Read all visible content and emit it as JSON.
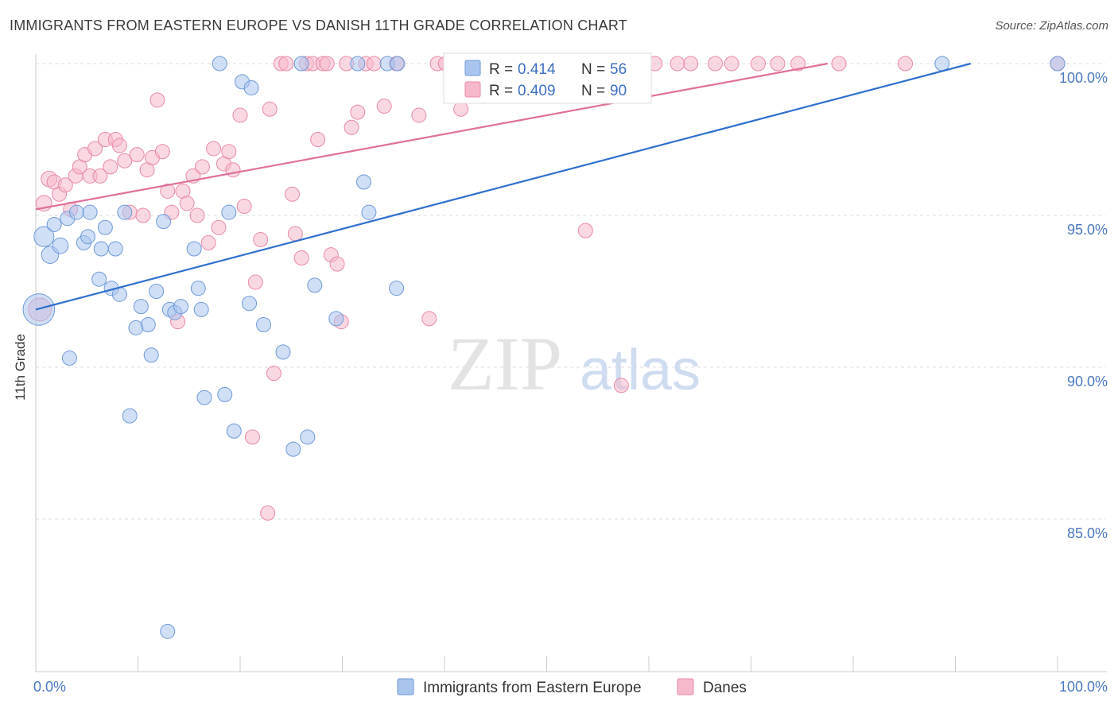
{
  "title": "IMMIGRANTS FROM EASTERN EUROPE VS DANISH 11TH GRADE CORRELATION CHART",
  "source": "Source: ZipAtlas.com",
  "watermark": {
    "zip": "ZIP",
    "atlas": "atlas"
  },
  "colors": {
    "blue_fill": "#a9c5ee",
    "blue_stroke": "#6f9ad8",
    "blue_line": "#2f6fce",
    "pink_fill": "#f6b8cb",
    "pink_stroke": "#e98aa8",
    "pink_line": "#e0709a",
    "grid": "#dddddd",
    "axis": "#cccccc",
    "tick_text": "#4a78c2"
  },
  "stats": {
    "blue": {
      "r_label": "R =",
      "r_value": "0.414",
      "n_label": "N =",
      "n_value": "56"
    },
    "pink": {
      "r_label": "R =",
      "r_value": "0.409",
      "n_label": "N =",
      "n_value": "90"
    }
  },
  "chart_data": {
    "type": "scatter",
    "title": "IMMIGRANTS FROM EASTERN EUROPE VS DANISH 11TH GRADE CORRELATION CHART",
    "xlabel": "",
    "ylabel": "11th Grade",
    "xlim": [
      0,
      100
    ],
    "ylim": [
      80.5,
      100.8
    ],
    "x_tick_labels": [
      {
        "value": 0,
        "label": "0.0%"
      },
      {
        "value": 100,
        "label": "100.0%"
      }
    ],
    "y_tick_labels": [
      {
        "value": 100,
        "label": "100.0%"
      },
      {
        "value": 95,
        "label": "95.0%"
      },
      {
        "value": 90,
        "label": "90.0%"
      },
      {
        "value": 85,
        "label": "85.0%"
      }
    ],
    "x_minor_ticks": [
      10,
      20,
      30,
      40,
      50,
      60,
      70,
      80,
      90,
      100
    ],
    "grid": true,
    "legend": "bottom-center",
    "series": [
      {
        "name": "Immigrants from Eastern Europe",
        "color": "#a9c5ee",
        "trend": {
          "x": [
            0,
            91.5
          ],
          "y": [
            91.9,
            100
          ]
        },
        "points": [
          [
            0.3,
            91.9,
            2.2
          ],
          [
            0.8,
            94.3,
            1.4
          ],
          [
            1.4,
            93.7,
            1.2
          ],
          [
            1.8,
            94.7,
            1.0
          ],
          [
            2.4,
            94.0,
            1.1
          ],
          [
            3.1,
            94.9,
            1.0
          ],
          [
            3.3,
            90.3,
            1.0
          ],
          [
            4.0,
            95.1,
            1.0
          ],
          [
            4.7,
            94.1,
            1.0
          ],
          [
            5.1,
            94.3,
            1.0
          ],
          [
            5.3,
            95.1,
            1.0
          ],
          [
            6.2,
            92.9,
            1.0
          ],
          [
            6.4,
            93.9,
            1.0
          ],
          [
            6.8,
            94.6,
            1.0
          ],
          [
            7.4,
            92.6,
            1.0
          ],
          [
            7.8,
            93.9,
            1.0
          ],
          [
            8.2,
            92.4,
            1.0
          ],
          [
            8.7,
            95.1,
            1.0
          ],
          [
            9.2,
            88.4,
            1.0
          ],
          [
            9.8,
            91.3,
            1.0
          ],
          [
            10.3,
            92.0,
            1.0
          ],
          [
            11.0,
            91.4,
            1.0
          ],
          [
            11.3,
            90.4,
            1.0
          ],
          [
            11.8,
            92.5,
            1.0
          ],
          [
            12.5,
            94.8,
            1.0
          ],
          [
            13.1,
            91.9,
            1.0
          ],
          [
            13.6,
            91.8,
            1.0
          ],
          [
            14.2,
            92.0,
            1.0
          ],
          [
            12.9,
            81.3,
            1.0
          ],
          [
            15.5,
            93.9,
            1.0
          ],
          [
            15.9,
            92.6,
            1.0
          ],
          [
            16.2,
            91.9,
            1.0
          ],
          [
            16.5,
            89.0,
            1.0
          ],
          [
            18.0,
            100.0,
            1.0
          ],
          [
            18.5,
            89.1,
            1.0
          ],
          [
            18.9,
            95.1,
            1.0
          ],
          [
            19.4,
            87.9,
            1.0
          ],
          [
            20.2,
            99.4,
            1.0
          ],
          [
            21.1,
            99.2,
            1.0
          ],
          [
            20.9,
            92.1,
            1.0
          ],
          [
            22.3,
            91.4,
            1.0
          ],
          [
            24.2,
            90.5,
            1.0
          ],
          [
            25.2,
            87.3,
            1.0
          ],
          [
            26.0,
            100.0,
            1.0
          ],
          [
            26.6,
            87.7,
            1.0
          ],
          [
            27.3,
            92.7,
            1.0
          ],
          [
            29.4,
            91.6,
            1.0
          ],
          [
            31.5,
            100.0,
            1.0
          ],
          [
            32.1,
            96.1,
            1.0
          ],
          [
            32.6,
            95.1,
            1.0
          ],
          [
            34.4,
            100.0,
            1.0
          ],
          [
            35.4,
            100.0,
            1.0
          ],
          [
            35.3,
            92.6,
            1.0
          ],
          [
            55.4,
            100.0,
            1.0
          ],
          [
            88.7,
            100.0,
            1.0
          ],
          [
            100.0,
            100.0,
            1.0
          ]
        ]
      },
      {
        "name": "Danes",
        "color": "#f6b8cb",
        "trend": {
          "x": [
            0,
            77.5
          ],
          "y": [
            95.2,
            100
          ]
        },
        "points": [
          [
            0.4,
            91.9,
            1.6
          ],
          [
            0.8,
            95.4,
            1.1
          ],
          [
            1.3,
            96.2,
            1.1
          ],
          [
            1.8,
            96.1,
            1.0
          ],
          [
            2.3,
            95.7,
            1.0
          ],
          [
            2.9,
            96.0,
            1.0
          ],
          [
            3.4,
            95.2,
            1.0
          ],
          [
            3.9,
            96.3,
            1.0
          ],
          [
            4.3,
            96.6,
            1.0
          ],
          [
            4.8,
            97.0,
            1.0
          ],
          [
            5.3,
            96.3,
            1.0
          ],
          [
            5.8,
            97.2,
            1.0
          ],
          [
            6.3,
            96.3,
            1.0
          ],
          [
            6.8,
            97.5,
            1.0
          ],
          [
            7.3,
            96.6,
            1.0
          ],
          [
            7.8,
            97.5,
            1.0
          ],
          [
            8.2,
            97.3,
            1.0
          ],
          [
            8.7,
            96.8,
            1.0
          ],
          [
            9.2,
            95.1,
            1.0
          ],
          [
            9.9,
            97.0,
            1.0
          ],
          [
            10.5,
            95.0,
            1.0
          ],
          [
            10.9,
            96.5,
            1.0
          ],
          [
            11.4,
            96.9,
            1.0
          ],
          [
            11.9,
            98.8,
            1.0
          ],
          [
            12.4,
            97.1,
            1.0
          ],
          [
            12.9,
            95.8,
            1.0
          ],
          [
            13.3,
            95.1,
            1.0
          ],
          [
            13.9,
            91.5,
            1.0
          ],
          [
            14.4,
            95.8,
            1.0
          ],
          [
            14.8,
            95.4,
            1.0
          ],
          [
            15.4,
            96.3,
            1.0
          ],
          [
            15.8,
            95.0,
            1.0
          ],
          [
            16.3,
            96.6,
            1.0
          ],
          [
            16.9,
            94.1,
            1.0
          ],
          [
            17.4,
            97.2,
            1.0
          ],
          [
            17.9,
            94.6,
            1.0
          ],
          [
            18.4,
            96.7,
            1.0
          ],
          [
            18.9,
            97.1,
            1.0
          ],
          [
            19.3,
            96.5,
            1.0
          ],
          [
            20.0,
            98.3,
            1.0
          ],
          [
            20.4,
            95.3,
            1.0
          ],
          [
            21.2,
            87.7,
            1.0
          ],
          [
            21.5,
            92.8,
            1.0
          ],
          [
            22.0,
            94.2,
            1.0
          ],
          [
            22.7,
            85.2,
            1.0
          ],
          [
            22.9,
            98.5,
            1.0
          ],
          [
            23.3,
            89.8,
            1.0
          ],
          [
            24.0,
            100.0,
            1.0
          ],
          [
            24.5,
            100.0,
            1.0
          ],
          [
            25.1,
            95.7,
            1.0
          ],
          [
            25.4,
            94.4,
            1.0
          ],
          [
            26.0,
            93.6,
            1.0
          ],
          [
            26.5,
            100.0,
            1.0
          ],
          [
            27.1,
            100.0,
            1.0
          ],
          [
            27.6,
            97.5,
            1.0
          ],
          [
            28.1,
            100.0,
            1.0
          ],
          [
            28.5,
            100.0,
            1.0
          ],
          [
            28.9,
            93.7,
            1.0
          ],
          [
            29.5,
            93.4,
            1.0
          ],
          [
            29.9,
            91.5,
            1.0
          ],
          [
            30.4,
            100.0,
            1.0
          ],
          [
            30.9,
            97.9,
            1.0
          ],
          [
            31.5,
            98.4,
            1.0
          ],
          [
            32.3,
            100.0,
            1.0
          ],
          [
            33.1,
            100.0,
            1.0
          ],
          [
            34.1,
            98.6,
            1.0
          ],
          [
            35.3,
            100.0,
            1.0
          ],
          [
            37.5,
            98.3,
            1.0
          ],
          [
            38.5,
            91.6,
            1.0
          ],
          [
            39.3,
            100.0,
            1.0
          ],
          [
            40.1,
            100.0,
            1.0
          ],
          [
            41.1,
            100.0,
            1.0
          ],
          [
            41.6,
            98.5,
            1.0
          ],
          [
            43.3,
            100.0,
            1.0
          ],
          [
            44.2,
            100.0,
            1.0
          ],
          [
            47.5,
            100.0,
            1.0
          ],
          [
            53.8,
            94.5,
            1.0
          ],
          [
            57.3,
            89.4,
            1.0
          ],
          [
            59.4,
            100.0,
            1.0
          ],
          [
            60.6,
            100.0,
            1.0
          ],
          [
            62.8,
            100.0,
            1.0
          ],
          [
            64.1,
            100.0,
            1.0
          ],
          [
            66.5,
            100.0,
            1.0
          ],
          [
            68.1,
            100.0,
            1.0
          ],
          [
            70.7,
            100.0,
            1.0
          ],
          [
            72.6,
            100.0,
            1.0
          ],
          [
            74.6,
            100.0,
            1.0
          ],
          [
            78.6,
            100.0,
            1.0
          ],
          [
            85.1,
            100.0,
            1.0
          ],
          [
            100.0,
            100.0,
            1.0
          ]
        ]
      }
    ]
  }
}
